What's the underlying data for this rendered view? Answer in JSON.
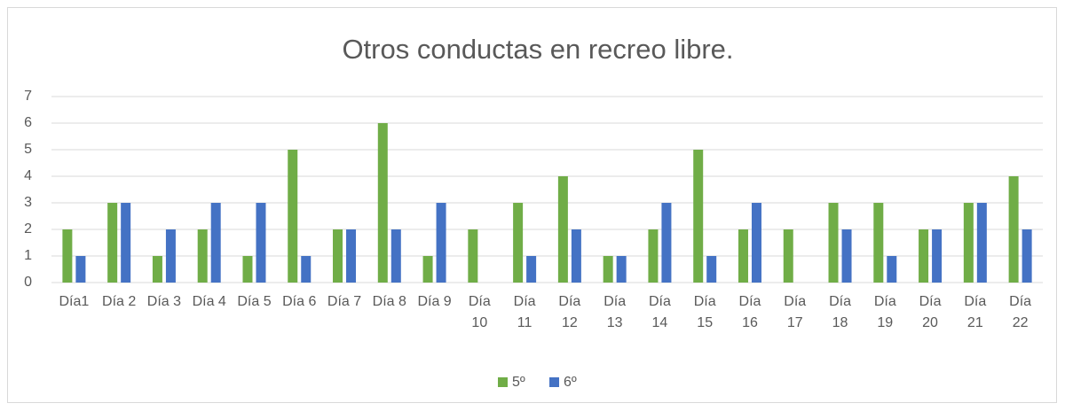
{
  "chart_data": {
    "type": "bar",
    "title": "Otros conductas en recreo libre.",
    "categories": [
      "Día1",
      "Día 2",
      "Día 3",
      "Día 4",
      "Día 5",
      "Día 6",
      "Día 7",
      "Día 8",
      "Día 9",
      "Día 10",
      "Día 11",
      "Día 12",
      "Día 13",
      "Día 14",
      "Día 15",
      "Día 16",
      "Día 17",
      "Día 18",
      "Día 19",
      "Día 20",
      "Día 21",
      "Día 22"
    ],
    "series": [
      {
        "name": "5º",
        "color": "#70ad47",
        "values": [
          2,
          3,
          1,
          2,
          1,
          5,
          2,
          6,
          1,
          2,
          3,
          4,
          1,
          2,
          5,
          2,
          2,
          3,
          3,
          2,
          3,
          4
        ]
      },
      {
        "name": "6º",
        "color": "#4472c4",
        "values": [
          1,
          3,
          2,
          3,
          3,
          1,
          2,
          2,
          3,
          0,
          1,
          2,
          1,
          3,
          1,
          3,
          0,
          2,
          1,
          2,
          3,
          2
        ]
      }
    ],
    "ylim": [
      0,
      7
    ],
    "yticks": [
      0,
      1,
      2,
      3,
      4,
      5,
      6,
      7
    ],
    "grid": true,
    "legend": "bottom"
  }
}
